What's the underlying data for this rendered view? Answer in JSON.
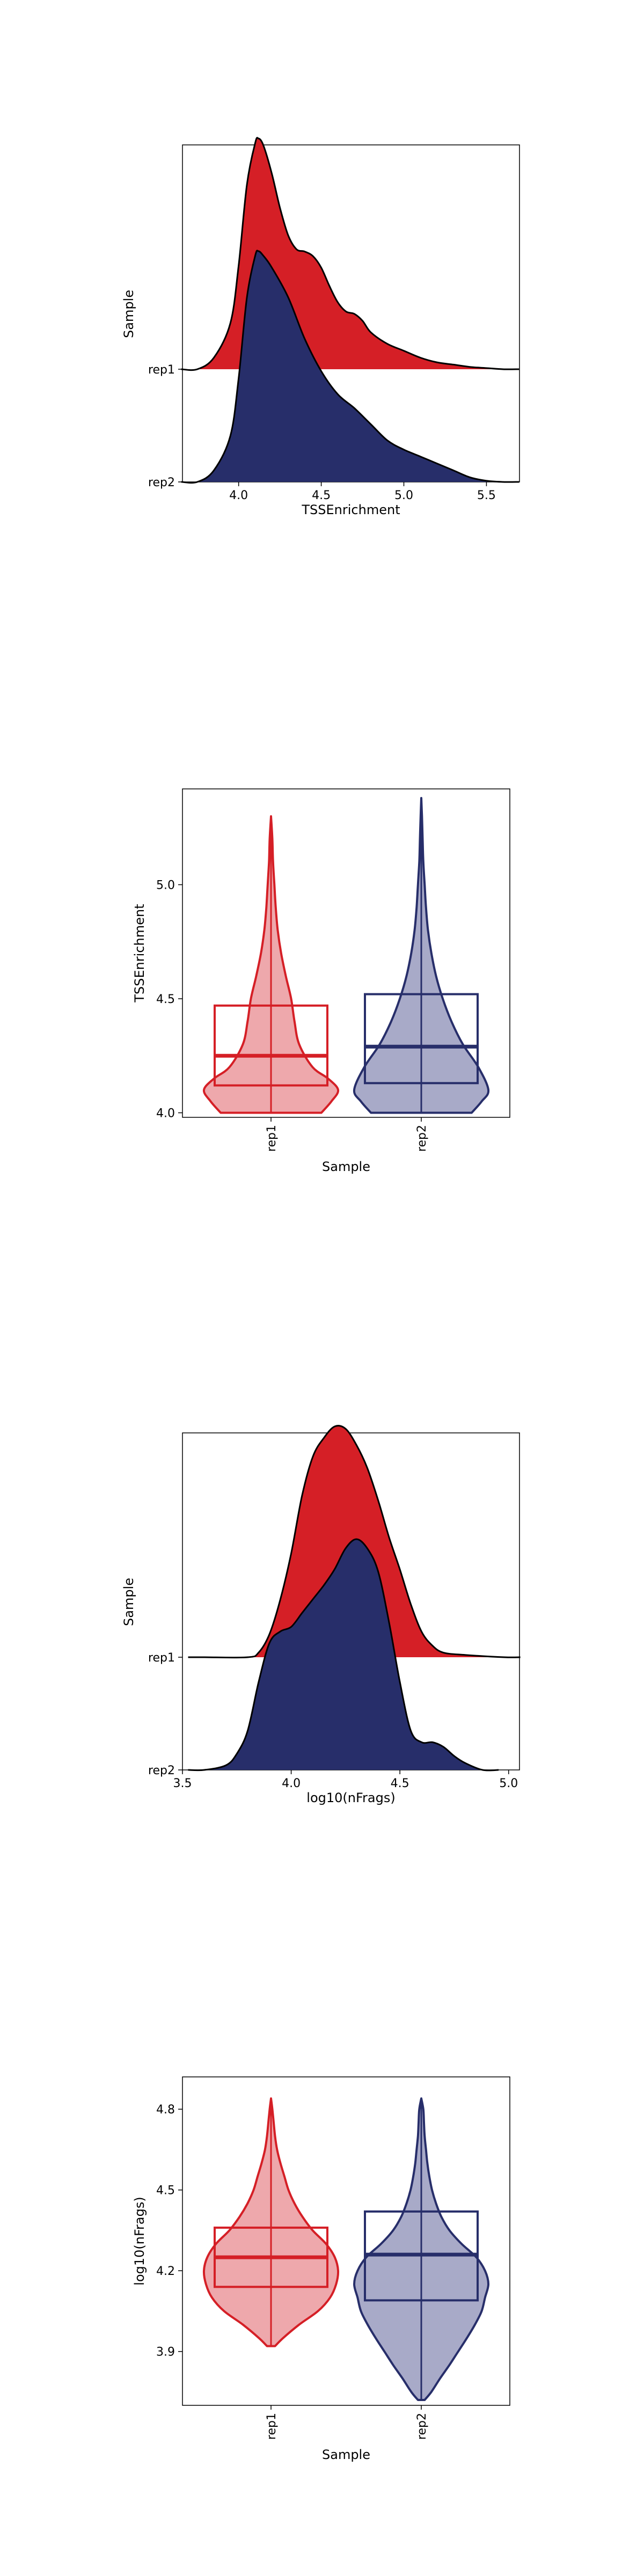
{
  "colors": {
    "rep1": "#d51f26",
    "rep2": "#272e6a",
    "rep1_light": "#eea8ac",
    "rep2_light": "#a8aac8",
    "outline": "#000000"
  },
  "chart_data": [
    {
      "type": "ridgeline",
      "xlabel": "TSSEnrichment",
      "ylabel": "Sample",
      "xlim": [
        3.66,
        5.7
      ],
      "xticks": [
        "4.0",
        "4.5",
        "5.0",
        "5.5"
      ],
      "categories": [
        "rep1",
        "rep2"
      ],
      "series": [
        {
          "name": "rep1",
          "color": "#d51f26",
          "x": [
            3.75,
            3.85,
            3.95,
            4.0,
            4.05,
            4.1,
            4.12,
            4.15,
            4.2,
            4.25,
            4.3,
            4.35,
            4.4,
            4.45,
            4.5,
            4.55,
            4.6,
            4.65,
            4.7,
            4.75,
            4.8,
            4.9,
            5.0,
            5.1,
            5.2,
            5.3,
            5.4,
            5.5,
            5.6
          ],
          "density": [
            0.0,
            0.05,
            0.2,
            0.45,
            0.8,
            0.98,
            1.0,
            0.97,
            0.85,
            0.7,
            0.58,
            0.52,
            0.51,
            0.49,
            0.44,
            0.36,
            0.29,
            0.25,
            0.24,
            0.21,
            0.16,
            0.11,
            0.08,
            0.05,
            0.03,
            0.02,
            0.01,
            0.005,
            0.0
          ]
        },
        {
          "name": "rep2",
          "color": "#272e6a",
          "x": [
            3.75,
            3.85,
            3.95,
            4.0,
            4.05,
            4.1,
            4.12,
            4.15,
            4.2,
            4.3,
            4.4,
            4.5,
            4.6,
            4.7,
            4.8,
            4.9,
            5.0,
            5.1,
            5.2,
            5.3,
            5.4,
            5.5,
            5.6
          ],
          "density": [
            0.0,
            0.05,
            0.2,
            0.45,
            0.8,
            0.98,
            1.0,
            0.98,
            0.93,
            0.8,
            0.62,
            0.48,
            0.38,
            0.32,
            0.25,
            0.18,
            0.14,
            0.11,
            0.08,
            0.05,
            0.02,
            0.005,
            0.0
          ]
        }
      ]
    },
    {
      "type": "violin",
      "xlabel": "Sample",
      "ylabel": "TSSEnrichment",
      "ylim": [
        3.98,
        5.42
      ],
      "yticks": [
        "4.0",
        "4.5",
        "5.0"
      ],
      "categories": [
        "rep1",
        "rep2"
      ],
      "series": [
        {
          "name": "rep1",
          "color": "#d51f26",
          "y": [
            4.0,
            4.05,
            4.1,
            4.15,
            4.2,
            4.3,
            4.4,
            4.5,
            4.6,
            4.7,
            4.8,
            4.9,
            5.0,
            5.1,
            5.2,
            5.3
          ],
          "width": [
            0.75,
            0.9,
            1.0,
            0.85,
            0.62,
            0.42,
            0.35,
            0.3,
            0.22,
            0.15,
            0.1,
            0.07,
            0.05,
            0.03,
            0.02,
            0.0
          ],
          "box": {
            "q1": 4.12,
            "median": 4.25,
            "q3": 4.47,
            "whisker_low": 4.0,
            "whisker_high": 5.3
          }
        },
        {
          "name": "rep2",
          "color": "#272e6a",
          "y": [
            4.0,
            4.05,
            4.1,
            4.2,
            4.3,
            4.4,
            4.5,
            4.6,
            4.7,
            4.8,
            4.9,
            5.0,
            5.1,
            5.2,
            5.3,
            5.38
          ],
          "width": [
            0.75,
            0.9,
            1.0,
            0.85,
            0.62,
            0.45,
            0.32,
            0.22,
            0.15,
            0.1,
            0.07,
            0.05,
            0.03,
            0.02,
            0.01,
            0.0
          ],
          "box": {
            "q1": 4.13,
            "median": 4.29,
            "q3": 4.52,
            "whisker_low": 4.0,
            "whisker_high": 5.38
          }
        }
      ]
    },
    {
      "type": "ridgeline",
      "xlabel": "log10(nFrags)",
      "ylabel": "Sample",
      "xlim": [
        3.5,
        5.05
      ],
      "xticks": [
        "3.5",
        "4.0",
        "4.5",
        "5.0"
      ],
      "categories": [
        "rep1",
        "rep2"
      ],
      "series": [
        {
          "name": "rep1",
          "color": "#d51f26",
          "x": [
            3.6,
            3.8,
            3.85,
            3.9,
            3.95,
            4.0,
            4.05,
            4.1,
            4.15,
            4.2,
            4.25,
            4.3,
            4.35,
            4.4,
            4.45,
            4.5,
            4.55,
            4.6,
            4.65,
            4.7,
            4.8,
            4.98
          ],
          "density": [
            0.0,
            0.0,
            0.02,
            0.1,
            0.25,
            0.45,
            0.7,
            0.87,
            0.95,
            1.0,
            0.99,
            0.92,
            0.82,
            0.68,
            0.52,
            0.38,
            0.23,
            0.11,
            0.05,
            0.02,
            0.01,
            0.0
          ]
        },
        {
          "name": "rep2",
          "color": "#272e6a",
          "x": [
            3.6,
            3.7,
            3.75,
            3.8,
            3.85,
            3.9,
            3.95,
            4.0,
            4.05,
            4.1,
            4.15,
            4.2,
            4.25,
            4.3,
            4.35,
            4.4,
            4.45,
            4.5,
            4.55,
            4.6,
            4.65,
            4.7,
            4.75,
            4.8,
            4.88
          ],
          "density": [
            0.0,
            0.02,
            0.07,
            0.17,
            0.38,
            0.55,
            0.6,
            0.62,
            0.68,
            0.74,
            0.8,
            0.87,
            0.96,
            1.0,
            0.96,
            0.86,
            0.64,
            0.38,
            0.17,
            0.12,
            0.12,
            0.1,
            0.06,
            0.03,
            0.0
          ]
        }
      ]
    },
    {
      "type": "violin",
      "xlabel": "Sample",
      "ylabel": "log10(nFrags)",
      "ylim": [
        3.7,
        4.92
      ],
      "yticks": [
        "3.9",
        "4.2",
        "4.5",
        "4.8"
      ],
      "categories": [
        "rep1",
        "rep2"
      ],
      "series": [
        {
          "name": "rep1",
          "color": "#d51f26",
          "y": [
            3.92,
            3.95,
            4.0,
            4.05,
            4.1,
            4.15,
            4.2,
            4.25,
            4.3,
            4.35,
            4.4,
            4.45,
            4.5,
            4.55,
            4.6,
            4.65,
            4.7,
            4.75,
            4.8,
            4.84
          ],
          "width": [
            0.06,
            0.18,
            0.42,
            0.7,
            0.88,
            0.97,
            1.0,
            0.95,
            0.82,
            0.62,
            0.47,
            0.35,
            0.26,
            0.2,
            0.14,
            0.09,
            0.06,
            0.04,
            0.02,
            0.0
          ],
          "box": {
            "q1": 4.14,
            "median": 4.25,
            "q3": 4.36,
            "whisker_low": 3.92,
            "whisker_high": 4.84
          }
        },
        {
          "name": "rep2",
          "color": "#272e6a",
          "y": [
            3.72,
            3.75,
            3.8,
            3.85,
            3.9,
            3.95,
            4.0,
            4.05,
            4.1,
            4.15,
            4.2,
            4.25,
            4.3,
            4.35,
            4.4,
            4.45,
            4.5,
            4.55,
            4.6,
            4.65,
            4.7,
            4.75,
            4.8,
            4.84
          ],
          "width": [
            0.05,
            0.15,
            0.28,
            0.42,
            0.55,
            0.68,
            0.8,
            0.9,
            0.95,
            1.0,
            0.95,
            0.82,
            0.6,
            0.42,
            0.3,
            0.22,
            0.16,
            0.12,
            0.09,
            0.07,
            0.05,
            0.04,
            0.03,
            0.0
          ],
          "box": {
            "q1": 4.09,
            "median": 4.26,
            "q3": 4.42,
            "whisker_low": 3.72,
            "whisker_high": 4.84
          }
        }
      ]
    }
  ]
}
